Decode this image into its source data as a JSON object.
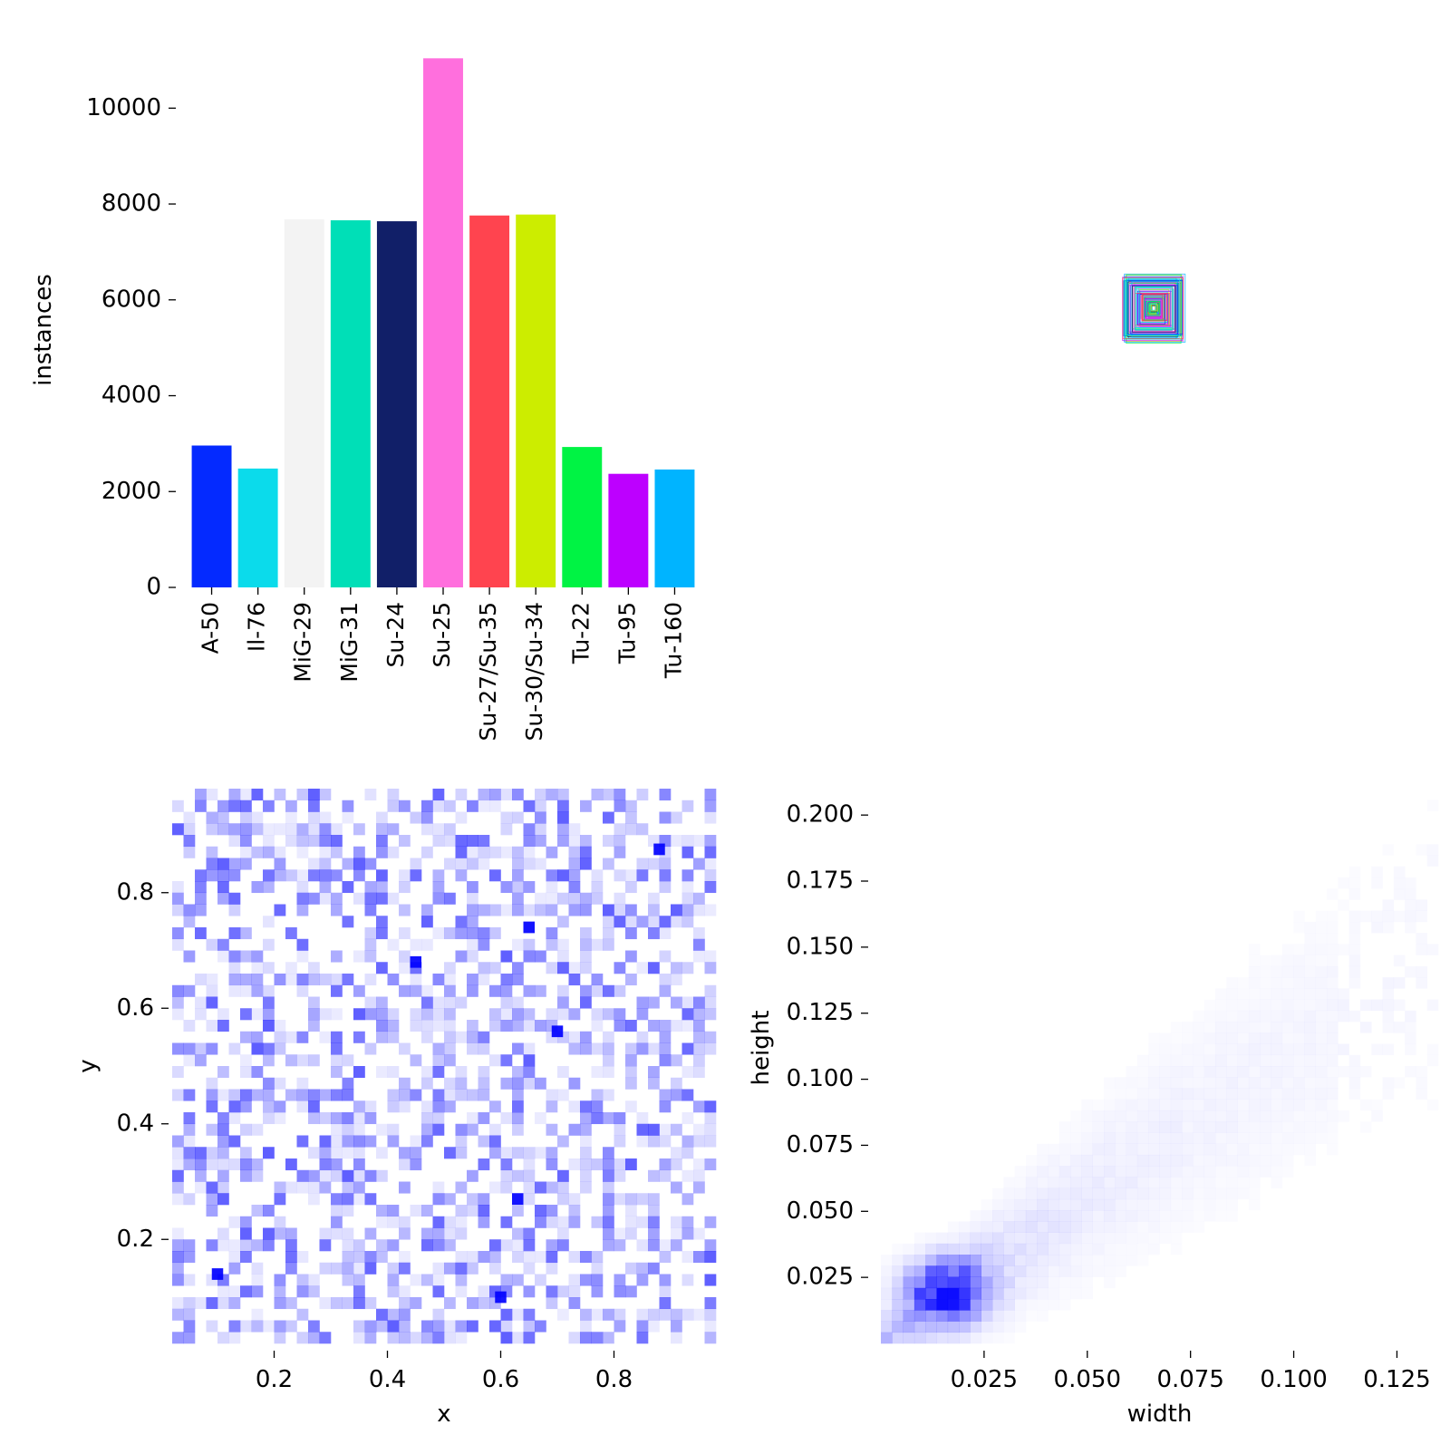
{
  "chart_data": [
    {
      "type": "bar",
      "title": "",
      "xlabel": "",
      "ylabel": "instances",
      "ylim": [
        0,
        11500
      ],
      "yticks": [
        0,
        2000,
        4000,
        6000,
        8000,
        10000
      ],
      "categories": [
        "A-50",
        "Il-76",
        "MiG-29",
        "MiG-31",
        "Su-24",
        "Su-25",
        "Su-27/Su-35",
        "Su-30/Su-34",
        "Tu-22",
        "Tu-95",
        "Tu-160"
      ],
      "values": [
        2960,
        2480,
        7680,
        7660,
        7640,
        11040,
        7760,
        7780,
        2930,
        2370,
        2460
      ],
      "colors": [
        "#042AFF",
        "#0BDBEB",
        "#F3F3F3",
        "#00DFB7",
        "#111F68",
        "#FF6FDD",
        "#FF444F",
        "#CCED00",
        "#00F344",
        "#BD00FF",
        "#00B4FF"
      ]
    },
    {
      "type": "scatter",
      "description_type": "label-box outline overlay",
      "box_center": [
        0.5,
        0.5
      ],
      "colors": [
        "#042AFF",
        "#0BDBEB",
        "#00DFB7",
        "#111F68",
        "#FF6FDD",
        "#FF444F",
        "#CCED00",
        "#00F344",
        "#BD00FF",
        "#00B4FF"
      ]
    },
    {
      "type": "heatmap",
      "xlabel": "x",
      "ylabel": "y",
      "xticks": [
        0.2,
        0.4,
        0.6,
        0.8
      ],
      "yticks": [
        0.2,
        0.4,
        0.6,
        0.8
      ],
      "xlim": [
        0.02,
        0.98
      ],
      "ylim": [
        0.02,
        0.98
      ],
      "bins": 48,
      "color": "#0000ff",
      "hotspots": [
        [
          0.88,
          0.875
        ],
        [
          0.7,
          0.56
        ],
        [
          0.45,
          0.68
        ],
        [
          0.1,
          0.14
        ],
        [
          0.63,
          0.27
        ],
        [
          0.6,
          0.1
        ],
        [
          0.65,
          0.74
        ]
      ]
    },
    {
      "type": "heatmap",
      "xlabel": "width",
      "ylabel": "height",
      "xticks": [
        0.025,
        0.05,
        0.075,
        0.1,
        0.125
      ],
      "yticks": [
        0.025,
        0.05,
        0.075,
        0.1,
        0.125,
        0.15,
        0.175,
        0.2
      ],
      "xlim": [
        0,
        0.135
      ],
      "ylim": [
        0,
        0.21
      ],
      "color": "#0000ff",
      "trend": "density concentrated near (0.015, 0.02) spreading along height ≈ 1.1 × width"
    }
  ]
}
